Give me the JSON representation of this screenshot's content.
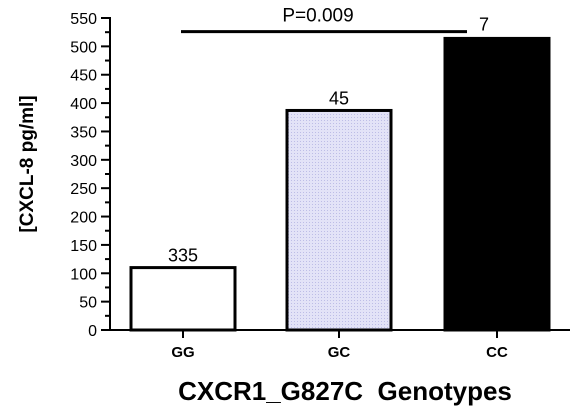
{
  "chart_data": {
    "type": "bar",
    "categories": [
      "GG",
      "GC",
      "CC"
    ],
    "values": [
      110,
      387,
      514
    ],
    "data_labels": [
      "335",
      "45",
      "7"
    ],
    "xlabel": "CXCR1_G827C  Genotypes",
    "ylabel": "[CXCL-8 pg/ml]",
    "ylim": [
      0,
      550
    ],
    "yticks": [
      0,
      25,
      50,
      75,
      100,
      125,
      150,
      175,
      200,
      225,
      250,
      275,
      300,
      325,
      350,
      375,
      400,
      425,
      450,
      475,
      500,
      525,
      550
    ],
    "ytick_labels": [
      "0",
      "",
      "50",
      "",
      "100",
      "",
      "150",
      "",
      "200",
      "",
      "250",
      "",
      "300",
      "",
      "350",
      "",
      "400",
      "",
      "450",
      "",
      "500",
      "",
      "550"
    ],
    "bar_fills": [
      "#ffffff",
      "#e3e3f7",
      "#000000"
    ],
    "bar_edge": "#000000",
    "grid": false,
    "legend": "none",
    "significance": {
      "label": "P=0.009",
      "from_category": "GG",
      "to_category": "CC",
      "y": 526
    }
  }
}
